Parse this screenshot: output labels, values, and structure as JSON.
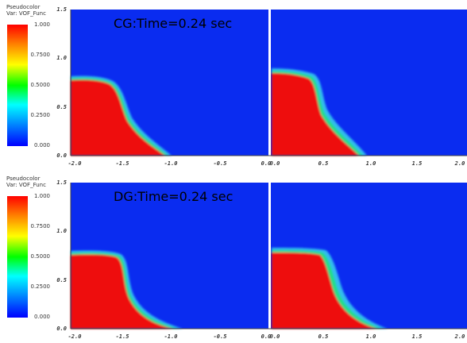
{
  "legend": {
    "title_line1": "Pseudocolor",
    "title_line2": "Var: VOF_Func",
    "ticks": [
      "1.000",
      "0.7500",
      "0.5000",
      "0.2500",
      "0.000"
    ]
  },
  "axes": {
    "y_ticks": [
      "1.5",
      "1.0",
      "0.5",
      "0.0"
    ],
    "x_ticks": [
      "-2.0",
      "-1.5",
      "-1.0",
      "-0.5",
      "0.0",
      "0.0",
      "0.5",
      "1.0",
      "1.5",
      "2.0"
    ]
  },
  "panels": [
    {
      "label": "CG:Time=0.24 sec"
    },
    {
      "label": "DG:Time=0.24 sec"
    }
  ],
  "colors": {
    "water": "#ee1111",
    "air": "#0a2cf0",
    "interface_mid": "#22dd88",
    "interface_outer": "#33bbee"
  }
}
